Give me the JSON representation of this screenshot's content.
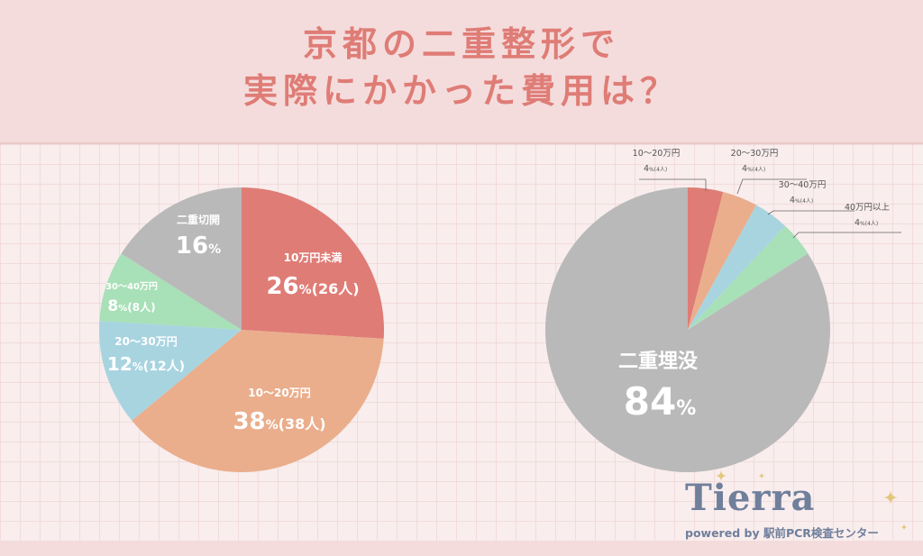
{
  "header": {
    "title_line1": "京都の二重整形で",
    "title_line2": "実際にかかった費用は？"
  },
  "colors": {
    "red": "#df7c76",
    "orange": "#eaae8c",
    "blue": "#a8d4e0",
    "green": "#a8e0b8",
    "gray": "#b9b9b9",
    "text_white": "#ffffff",
    "text_dark": "#555555"
  },
  "chart_data": [
    {
      "type": "pie",
      "title": "",
      "slices": [
        {
          "label": "10万円未満",
          "percent_text": "26",
          "count_text": "(26人)",
          "value": 26,
          "color": "#df7c76"
        },
        {
          "label": "10〜20万円",
          "percent_text": "38",
          "count_text": "(38人)",
          "value": 38,
          "color": "#eaae8c"
        },
        {
          "label": "20〜30万円",
          "percent_text": "12",
          "count_text": "(12人)",
          "value": 12,
          "color": "#a8d4e0"
        },
        {
          "label": "30〜40万円",
          "percent_text": "8",
          "count_text": "(8人)",
          "value": 8,
          "color": "#a8e0b8"
        },
        {
          "label": "二重切開",
          "percent_text": "16",
          "count_text": "",
          "value": 16,
          "color": "#b9b9b9"
        }
      ]
    },
    {
      "type": "pie",
      "title": "",
      "slices": [
        {
          "label": "10〜20万円",
          "percent_text": "4",
          "count_text": "(4人)",
          "value": 4,
          "color": "#df7c76"
        },
        {
          "label": "20〜30万円",
          "percent_text": "4",
          "count_text": "(4人)",
          "value": 4,
          "color": "#eaae8c"
        },
        {
          "label": "30〜40万円",
          "percent_text": "4",
          "count_text": "(4人)",
          "value": 4,
          "color": "#a8d4e0"
        },
        {
          "label": "40万円以上",
          "percent_text": "4",
          "count_text": "(4人)",
          "value": 4,
          "color": "#a8e0b8"
        },
        {
          "label": "二重埋没",
          "percent_text": "84",
          "count_text": "",
          "value": 84,
          "color": "#b9b9b9"
        }
      ]
    }
  ],
  "percent_symbol": "%",
  "logo": {
    "wordmark": "Tierra",
    "tagline": "powered by 駅前PCR検査センター"
  }
}
